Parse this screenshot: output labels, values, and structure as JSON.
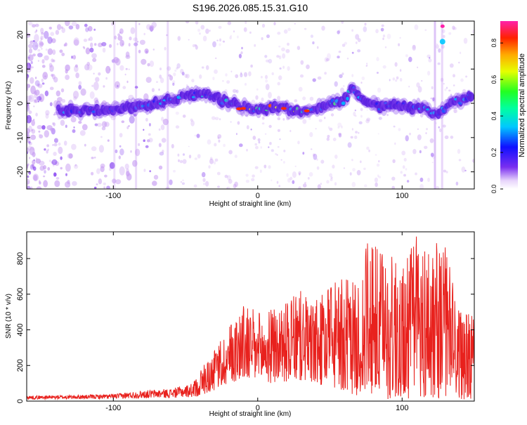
{
  "page_title": "S196.2026.085.15.31.G10",
  "colors": {
    "snr_line": "#e8211d",
    "axis": "#000000",
    "speckle": "#c79cf2",
    "ridge_low": "#5a1fe0"
  },
  "chart_data": [
    {
      "type": "heatmap",
      "title": "S196.2026.085.15.31.G10",
      "xlabel": "Height of straight line (km)",
      "ylabel": "Frequency (Hz)",
      "xlim": [
        -160,
        150
      ],
      "ylim": [
        -25,
        24
      ],
      "xticks": [
        -100,
        0,
        100
      ],
      "yticks": [
        -20,
        -10,
        0,
        10,
        20
      ],
      "ridge": {
        "x": [
          -130,
          -110,
          -95,
          -80,
          -70,
          -60,
          -50,
          -40,
          -30,
          -20,
          -10,
          0,
          10,
          20,
          30,
          40,
          50,
          60,
          66,
          75,
          85,
          95,
          105,
          115,
          122,
          135,
          145
        ],
        "freq": [
          -2,
          -2,
          -1.5,
          -1,
          0,
          1,
          2,
          3,
          2,
          0,
          -1,
          -1.5,
          -1.5,
          -1.5,
          -2,
          -1.5,
          -0.5,
          1,
          4,
          1,
          -1,
          0,
          -1,
          -2,
          -3,
          0,
          2
        ]
      },
      "colorbar": {
        "label": "Normalized spectral amplitude",
        "ticks": [
          "0.0",
          "0.2",
          "0.4",
          "0.6",
          "0.8"
        ],
        "range": [
          0,
          0.92
        ]
      }
    },
    {
      "type": "line",
      "xlabel": "Height of straight line (km)",
      "ylabel": "SNR (10 * v/v)",
      "xlim": [
        -160,
        150
      ],
      "ylim": [
        0,
        950
      ],
      "xticks": [
        -100,
        0,
        100
      ],
      "yticks": [
        0,
        200,
        400,
        600,
        800
      ],
      "envelope": {
        "x": [
          -160,
          -120,
          -100,
          -80,
          -60,
          -50,
          -45,
          -40,
          -30,
          -20,
          -10,
          0,
          10,
          20,
          30,
          40,
          50,
          60,
          70,
          75,
          80,
          90,
          100,
          110,
          120,
          130,
          140,
          150
        ],
        "peak": [
          30,
          35,
          40,
          60,
          70,
          90,
          100,
          180,
          280,
          430,
          550,
          500,
          520,
          560,
          620,
          560,
          650,
          700,
          650,
          900,
          880,
          850,
          780,
          940,
          900,
          880,
          520,
          470
        ],
        "base": [
          10,
          12,
          12,
          15,
          18,
          20,
          22,
          30,
          60,
          100,
          120,
          100,
          100,
          110,
          110,
          90,
          80,
          50,
          30,
          20,
          10,
          10,
          10,
          10,
          10,
          20,
          10,
          10
        ]
      }
    }
  ]
}
